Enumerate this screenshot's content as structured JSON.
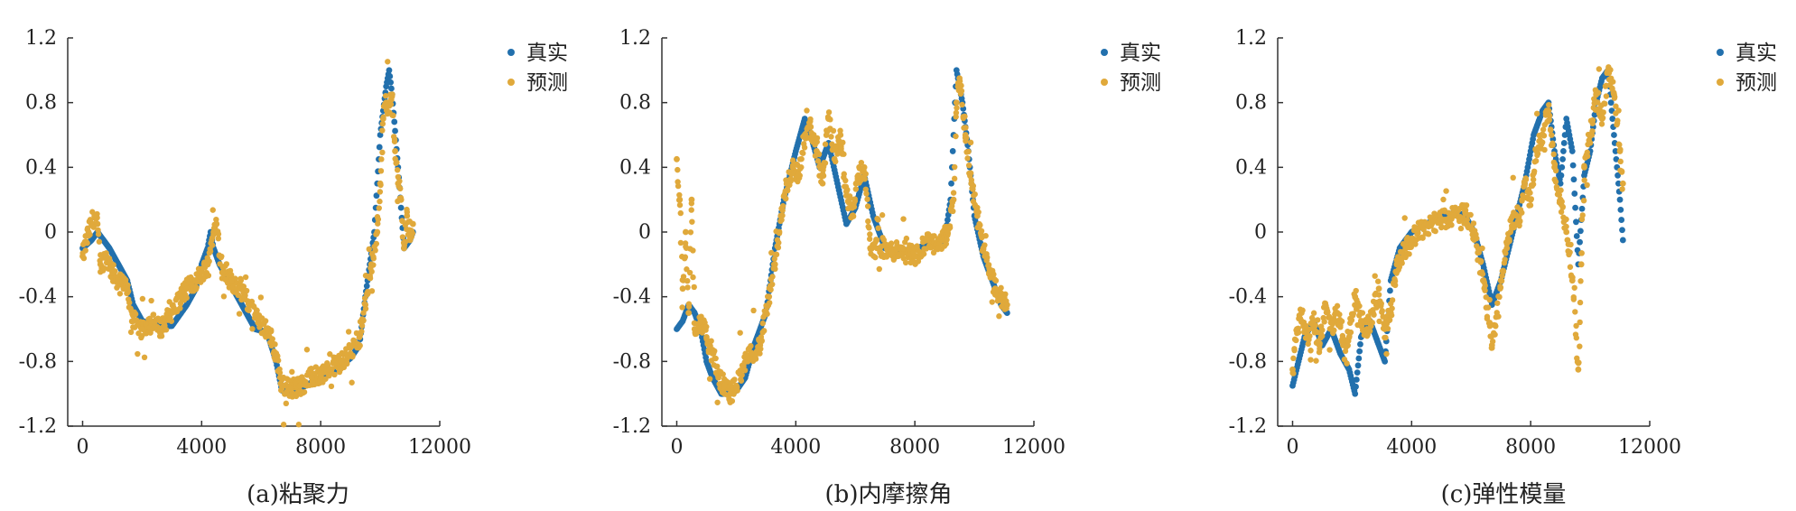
{
  "legend": {
    "true_label": "真实",
    "pred_label": "预测"
  },
  "colors": {
    "true": "#2270AD",
    "pred": "#E0A93B"
  },
  "chart_data": [
    {
      "type": "scatter",
      "caption": "(a)粘聚力",
      "xlim": [
        -500,
        12000
      ],
      "ylim": [
        -1.2,
        1.2
      ],
      "xticks": [
        0,
        4000,
        8000,
        12000
      ],
      "yticks": [
        -1.2,
        -0.8,
        -0.4,
        0,
        0.4,
        0.8,
        1.2
      ],
      "series": [
        {
          "name": "真实",
          "x": [
            0,
            300,
            500,
            700,
            900,
            1200,
            1500,
            1700,
            2000,
            2500,
            3000,
            3500,
            3800,
            4000,
            4200,
            4300,
            4400,
            4600,
            4900,
            5200,
            5500,
            5800,
            6200,
            6500,
            6700,
            7000,
            7500,
            8000,
            8500,
            9000,
            9300,
            9500,
            9800,
            10000,
            10200,
            10300,
            10400,
            10600,
            10800,
            11000,
            11100
          ],
          "y": [
            -0.1,
            -0.05,
            0,
            -0.05,
            -0.1,
            -0.2,
            -0.3,
            -0.45,
            -0.55,
            -0.58,
            -0.58,
            -0.45,
            -0.35,
            -0.2,
            -0.1,
            0,
            -0.1,
            -0.2,
            -0.3,
            -0.4,
            -0.5,
            -0.6,
            -0.62,
            -0.8,
            -0.98,
            -0.98,
            -0.95,
            -0.9,
            -0.85,
            -0.78,
            -0.7,
            -0.4,
            0,
            0.6,
            0.9,
            1.0,
            0.85,
            0.4,
            -0.1,
            -0.05,
            0.0
          ]
        },
        {
          "name": "预测",
          "x": [
            0,
            200,
            400,
            500,
            600,
            800,
            1000,
            1200,
            1500,
            1700,
            2000,
            2300,
            2600,
            3000,
            3300,
            3500,
            3800,
            4000,
            4200,
            4400,
            4500,
            4700,
            5000,
            5300,
            5600,
            5900,
            6200,
            6500,
            6700,
            7000,
            7300,
            7700,
            8000,
            8300,
            8700,
            9000,
            9300,
            9500,
            9700,
            9900,
            10000,
            10100,
            10200,
            10300,
            10400,
            10500,
            10600,
            10700,
            10800,
            10900,
            11000,
            11100
          ],
          "y": [
            -0.15,
            0.0,
            0.1,
            0.05,
            -0.2,
            -0.15,
            -0.25,
            -0.3,
            -0.35,
            -0.55,
            -0.6,
            -0.55,
            -0.6,
            -0.5,
            -0.4,
            -0.35,
            -0.3,
            -0.25,
            -0.2,
            0.0,
            0.05,
            -0.25,
            -0.3,
            -0.35,
            -0.45,
            -0.55,
            -0.6,
            -0.75,
            -0.95,
            -0.97,
            -0.95,
            -0.9,
            -0.88,
            -0.85,
            -0.8,
            -0.75,
            -0.65,
            -0.45,
            -0.2,
            0.0,
            0.3,
            0.7,
            0.8,
            0.78,
            0.85,
            0.5,
            0.3,
            0.2,
            -0.1,
            0.1,
            -0.05,
            0.05
          ]
        }
      ]
    },
    {
      "type": "scatter",
      "caption": "(b)内摩擦角",
      "xlim": [
        -500,
        12000
      ],
      "ylim": [
        -1.2,
        1.2
      ],
      "xticks": [
        0,
        4000,
        8000,
        12000
      ],
      "yticks": [
        -1.2,
        -0.8,
        -0.4,
        0,
        0.4,
        0.8,
        1.2
      ],
      "series": [
        {
          "name": "真实",
          "x": [
            0,
            200,
            400,
            600,
            800,
            1000,
            1200,
            1500,
            1800,
            2000,
            2300,
            2600,
            3000,
            3300,
            3600,
            4000,
            4300,
            4500,
            4800,
            5100,
            5400,
            5700,
            6000,
            6300,
            6600,
            7000,
            7500,
            8000,
            8500,
            9000,
            9200,
            9400,
            9600,
            9800,
            10000,
            10300,
            10600,
            10900,
            11100
          ],
          "y": [
            -0.6,
            -0.55,
            -0.45,
            -0.5,
            -0.6,
            -0.8,
            -0.9,
            -1.0,
            -1.0,
            -0.98,
            -0.9,
            -0.7,
            -0.5,
            -0.1,
            0.2,
            0.5,
            0.7,
            0.6,
            0.4,
            0.55,
            0.3,
            0.05,
            0.15,
            0.35,
            0.1,
            -0.1,
            -0.12,
            -0.1,
            -0.08,
            -0.05,
            0.2,
            1.0,
            0.8,
            0.5,
            0.1,
            -0.15,
            -0.3,
            -0.45,
            -0.5
          ]
        },
        {
          "name": "预测",
          "x": [
            0,
            100,
            200,
            300,
            400,
            500,
            600,
            800,
            1000,
            1200,
            1400,
            1600,
            1800,
            2000,
            2200,
            2500,
            2800,
            3100,
            3300,
            3500,
            3700,
            3900,
            4100,
            4300,
            4500,
            4700,
            4900,
            5100,
            5300,
            5500,
            5700,
            5900,
            6100,
            6300,
            6500,
            6800,
            7200,
            7600,
            8000,
            8400,
            8800,
            9100,
            9300,
            9400,
            9500,
            9700,
            9900,
            10100,
            10300,
            10500,
            10700,
            10900,
            11100
          ],
          "y": [
            0.45,
            0.2,
            -0.35,
            0.0,
            -0.5,
            0.2,
            -0.6,
            -0.55,
            -0.65,
            -0.75,
            -0.9,
            -0.95,
            -1.0,
            -0.95,
            -0.85,
            -0.75,
            -0.7,
            -0.4,
            -0.2,
            0.1,
            0.3,
            0.4,
            0.35,
            0.6,
            0.65,
            0.5,
            0.3,
            0.7,
            0.45,
            0.6,
            0.25,
            0.1,
            0.35,
            0.4,
            -0.1,
            -0.1,
            -0.12,
            -0.1,
            -0.15,
            -0.05,
            -0.1,
            0.0,
            0.2,
            0.8,
            0.95,
            0.6,
            0.3,
            0.1,
            -0.1,
            -0.25,
            -0.35,
            -0.4,
            -0.45
          ]
        }
      ]
    },
    {
      "type": "scatter",
      "caption": "(c)弹性模量",
      "xlim": [
        -500,
        12000
      ],
      "ylim": [
        -1.2,
        1.2
      ],
      "xticks": [
        0,
        4000,
        8000,
        12000
      ],
      "yticks": [
        -1.2,
        -0.8,
        -0.4,
        0,
        0.4,
        0.8,
        1.2
      ],
      "series": [
        {
          "name": "真实",
          "x": [
            0,
            200,
            400,
            700,
            1000,
            1300,
            1600,
            1900,
            2100,
            2300,
            2600,
            2900,
            3100,
            3300,
            3600,
            4000,
            4500,
            5000,
            5500,
            5800,
            6100,
            6400,
            6700,
            7000,
            7400,
            7800,
            8100,
            8400,
            8600,
            8800,
            9000,
            9200,
            9400,
            9600,
            9800,
            10000,
            10200,
            10400,
            10600,
            10800,
            11000,
            11100
          ],
          "y": [
            -0.95,
            -0.8,
            -0.65,
            -0.55,
            -0.7,
            -0.6,
            -0.75,
            -0.85,
            -1.0,
            -0.65,
            -0.55,
            -0.7,
            -0.8,
            -0.3,
            -0.1,
            0.0,
            0.05,
            0.1,
            0.12,
            0.1,
            0.0,
            -0.2,
            -0.45,
            -0.3,
            0.0,
            0.3,
            0.6,
            0.75,
            0.8,
            0.5,
            0.3,
            0.7,
            0.5,
            -0.2,
            0.35,
            0.5,
            0.8,
            0.95,
            1.0,
            0.6,
            0.2,
            -0.05
          ]
        },
        {
          "name": "预测",
          "x": [
            0,
            150,
            300,
            500,
            700,
            900,
            1100,
            1300,
            1500,
            1700,
            1900,
            2100,
            2300,
            2500,
            2700,
            2900,
            3100,
            3300,
            3500,
            3800,
            4200,
            4600,
            5000,
            5400,
            5800,
            6100,
            6400,
            6700,
            7000,
            7200,
            7400,
            7600,
            7800,
            8000,
            8200,
            8400,
            8600,
            8800,
            9000,
            9200,
            9400,
            9600,
            9700,
            9800,
            10000,
            10200,
            10400,
            10600,
            10800,
            11000,
            11100
          ],
          "y": [
            -0.85,
            -0.6,
            -0.5,
            -0.65,
            -0.55,
            -0.7,
            -0.45,
            -0.6,
            -0.5,
            -0.7,
            -0.65,
            -0.4,
            -0.55,
            -0.6,
            -0.5,
            -0.35,
            -0.6,
            -0.5,
            -0.2,
            -0.1,
            0.0,
            0.05,
            0.08,
            0.1,
            0.12,
            0.0,
            -0.3,
            -0.7,
            -0.3,
            -0.1,
            0.1,
            0.05,
            0.3,
            0.2,
            0.5,
            0.6,
            0.75,
            0.4,
            0.2,
            0.0,
            -0.3,
            -0.85,
            -0.2,
            0.4,
            0.6,
            0.85,
            0.7,
            1.0,
            0.85,
            0.5,
            0.3
          ]
        }
      ]
    }
  ]
}
